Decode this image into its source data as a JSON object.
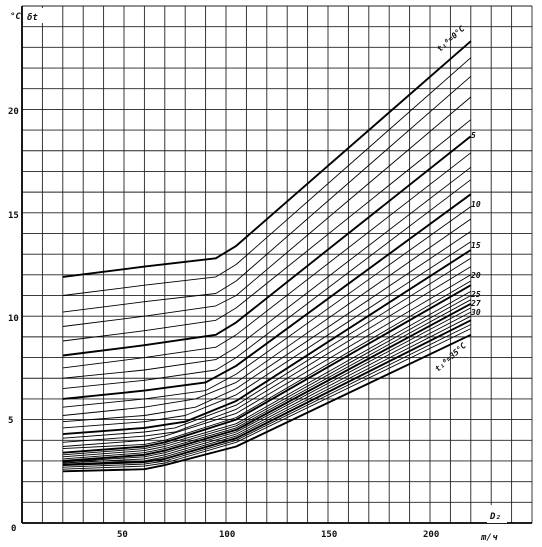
{
  "chart_data": {
    "type": "line",
    "ylabel_unit": "°C",
    "ylabel": "δt",
    "xlabel": "D₂",
    "xlabel_unit": "m/ч",
    "xlim": [
      0,
      250
    ],
    "ylim": [
      0,
      25
    ],
    "x_ticks": [
      "0",
      "50",
      "100",
      "150",
      "200"
    ],
    "y_ticks": [
      "5",
      "10",
      "15",
      "20"
    ],
    "grid": true,
    "series": [
      {
        "name": "t₁⁰=0°C",
        "x": [
          20,
          60,
          95,
          105,
          220
        ],
        "y": [
          11.9,
          12.4,
          12.8,
          13.4,
          23.3
        ]
      },
      {
        "x": [
          20,
          60,
          95,
          105,
          220
        ],
        "y": [
          11.0,
          11.5,
          11.9,
          12.5,
          22.5
        ]
      },
      {
        "x": [
          20,
          60,
          95,
          105,
          220
        ],
        "y": [
          10.2,
          10.7,
          11.1,
          11.7,
          21.6
        ]
      },
      {
        "x": [
          20,
          60,
          95,
          105,
          220
        ],
        "y": [
          9.5,
          10.0,
          10.5,
          11.0,
          20.6
        ]
      },
      {
        "x": [
          20,
          60,
          95,
          105,
          220
        ],
        "y": [
          8.8,
          9.3,
          9.8,
          10.4,
          19.5
        ]
      },
      {
        "name": "5",
        "x": [
          20,
          60,
          95,
          105,
          220
        ],
        "y": [
          8.1,
          8.6,
          9.1,
          9.7,
          18.7
        ]
      },
      {
        "x": [
          20,
          60,
          95,
          105,
          220
        ],
        "y": [
          7.5,
          8.0,
          8.5,
          9.1,
          17.9
        ]
      },
      {
        "x": [
          20,
          60,
          95,
          105,
          220
        ],
        "y": [
          7.0,
          7.4,
          7.9,
          8.5,
          17.2
        ]
      },
      {
        "x": [
          20,
          60,
          95,
          105,
          220
        ],
        "y": [
          6.5,
          6.9,
          7.4,
          8.0,
          16.6
        ]
      },
      {
        "name": "10",
        "x": [
          20,
          60,
          90,
          105,
          220
        ],
        "y": [
          6.0,
          6.4,
          6.8,
          7.6,
          15.9
        ]
      },
      {
        "x": [
          20,
          60,
          90,
          105,
          220
        ],
        "y": [
          5.6,
          6.0,
          6.4,
          7.2,
          15.3
        ]
      },
      {
        "x": [
          20,
          60,
          85,
          105,
          220
        ],
        "y": [
          5.2,
          5.6,
          6.0,
          6.8,
          14.7
        ]
      },
      {
        "x": [
          20,
          60,
          85,
          105,
          220
        ],
        "y": [
          4.9,
          5.2,
          5.6,
          6.5,
          14.1
        ]
      },
      {
        "x": [
          20,
          60,
          80,
          105,
          220
        ],
        "y": [
          4.6,
          4.9,
          5.2,
          6.2,
          13.6
        ]
      },
      {
        "name": "15",
        "x": [
          20,
          60,
          80,
          105,
          220
        ],
        "y": [
          4.3,
          4.6,
          4.9,
          5.9,
          13.2
        ]
      },
      {
        "x": [
          20,
          60,
          75,
          105,
          220
        ],
        "y": [
          4.1,
          4.4,
          4.6,
          5.7,
          12.8
        ]
      },
      {
        "x": [
          20,
          60,
          75,
          105,
          220
        ],
        "y": [
          3.9,
          4.2,
          4.4,
          5.5,
          12.4
        ]
      },
      {
        "x": [
          20,
          60,
          70,
          105,
          220
        ],
        "y": [
          3.7,
          4.0,
          4.2,
          5.3,
          12.0
        ]
      },
      {
        "x": [
          20,
          60,
          70,
          105,
          220
        ],
        "y": [
          3.6,
          3.8,
          4.0,
          5.1,
          11.7
        ]
      },
      {
        "name": "20",
        "x": [
          20,
          60,
          70,
          105,
          220
        ],
        "y": [
          3.4,
          3.7,
          3.9,
          5.0,
          11.5
        ]
      },
      {
        "x": [
          20,
          60,
          70,
          105,
          220
        ],
        "y": [
          3.3,
          3.6,
          3.8,
          4.8,
          11.2
        ]
      },
      {
        "x": [
          20,
          60,
          70,
          105,
          220
        ],
        "y": [
          3.2,
          3.5,
          3.7,
          4.7,
          11.0
        ]
      },
      {
        "x": [
          20,
          60,
          70,
          105,
          220
        ],
        "y": [
          3.1,
          3.4,
          3.6,
          4.6,
          10.8
        ]
      },
      {
        "name": "25",
        "x": [
          20,
          60,
          70,
          105,
          220
        ],
        "y": [
          3.0,
          3.3,
          3.5,
          4.5,
          10.6
        ]
      },
      {
        "x": [
          20,
          60,
          70,
          105,
          220
        ],
        "y": [
          2.95,
          3.2,
          3.4,
          4.4,
          10.4
        ]
      },
      {
        "name": "27",
        "x": [
          20,
          60,
          70,
          105,
          220
        ],
        "y": [
          2.9,
          3.1,
          3.3,
          4.3,
          10.2
        ]
      },
      {
        "x": [
          20,
          60,
          70,
          105,
          220
        ],
        "y": [
          2.85,
          3.0,
          3.2,
          4.2,
          10.0
        ]
      },
      {
        "name": "30",
        "x": [
          20,
          60,
          70,
          105,
          220
        ],
        "y": [
          2.8,
          2.95,
          3.1,
          4.1,
          9.8
        ]
      },
      {
        "x": [
          20,
          60,
          70,
          105,
          220
        ],
        "y": [
          2.7,
          2.85,
          3.0,
          4.0,
          9.6
        ]
      },
      {
        "x": [
          20,
          60,
          70,
          105,
          220
        ],
        "y": [
          2.6,
          2.75,
          2.9,
          3.9,
          9.4
        ]
      },
      {
        "name": "t₁⁰=35°C",
        "x": [
          20,
          60,
          70,
          105,
          220
        ],
        "y": [
          2.5,
          2.6,
          2.8,
          3.7,
          9.1
        ]
      }
    ],
    "curve_labels": {
      "top": "t₁⁰=0°C",
      "bottom": "t₁⁰=35°C",
      "mid": [
        "5",
        "10",
        "15",
        "20",
        "25",
        "27",
        "30"
      ]
    }
  }
}
